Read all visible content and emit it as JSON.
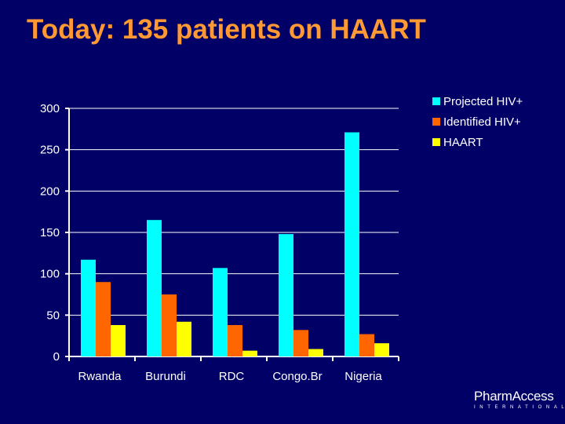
{
  "slide": {
    "title": "Today: 135 patients on HAART",
    "logo_main": "PharmAccess",
    "logo_sub": "INTERNATIONAL"
  },
  "colors": {
    "background": "#000066",
    "title": "#ff9933",
    "gridline": "#ffffff",
    "projected": "#00ffff",
    "identified": "#ff6600",
    "haart": "#ffff00"
  },
  "chart_data": {
    "type": "bar",
    "title": "",
    "xlabel": "",
    "ylabel": "",
    "categories": [
      "Rwanda",
      "Burundi",
      "RDC",
      "Congo.Br",
      "Nigeria"
    ],
    "ylim": [
      0,
      300
    ],
    "yticks": [
      0,
      50,
      100,
      150,
      200,
      250,
      300
    ],
    "grid": true,
    "legend_position": "top-right",
    "series": [
      {
        "name": "Projected HIV+",
        "color": "#00ffff",
        "values": [
          117,
          165,
          107,
          148,
          271
        ]
      },
      {
        "name": "Identified HIV+",
        "color": "#ff6600",
        "values": [
          90,
          75,
          38,
          32,
          27
        ]
      },
      {
        "name": "HAART",
        "color": "#ffff00",
        "values": [
          38,
          42,
          7,
          9,
          16
        ]
      }
    ]
  }
}
